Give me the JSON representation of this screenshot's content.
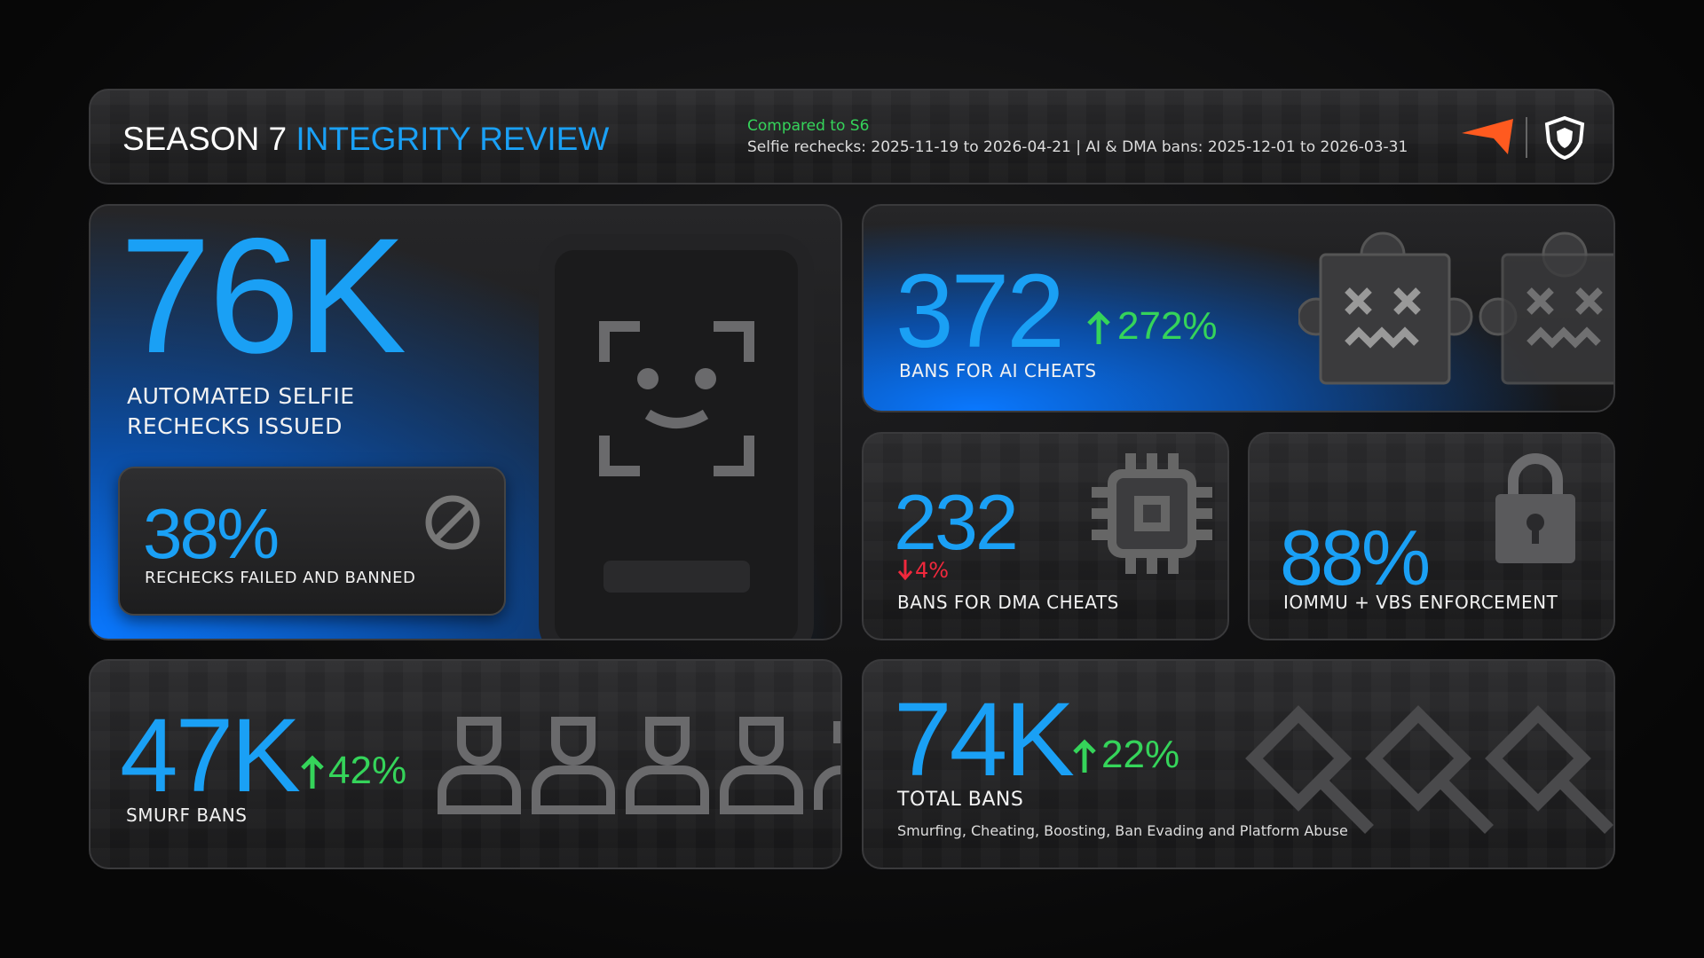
{
  "header": {
    "title_prefix": "SEASON 7",
    "title_highlight": "INTEGRITY REVIEW",
    "comparison": "Compared to S6",
    "date_ranges": "Selfie rechecks: 2025-11-19 to 2026-04-21 | AI & DMA bans: 2025-12-01 to 2026-03-31"
  },
  "selfie": {
    "value": "76K",
    "label": "AUTOMATED SELFIE RECHECKS ISSUED",
    "failed": {
      "value": "38%",
      "label": "RECHECKS FAILED AND BANNED"
    }
  },
  "ai": {
    "value": "372",
    "change": "272%",
    "label": "BANS FOR AI CHEATS"
  },
  "dma": {
    "value": "232",
    "change": "4%",
    "label": "BANS FOR DMA CHEATS"
  },
  "iommu": {
    "value": "88%",
    "label": "IOMMU + VBS ENFORCEMENT"
  },
  "smurf": {
    "value": "47K",
    "change": "42%",
    "label": "SMURF BANS"
  },
  "total": {
    "value": "74K",
    "change": "22%",
    "label": "TOTAL BANS",
    "note": "Smurfing, Cheating, Boosting, Ban Evading and Platform Abuse"
  }
}
